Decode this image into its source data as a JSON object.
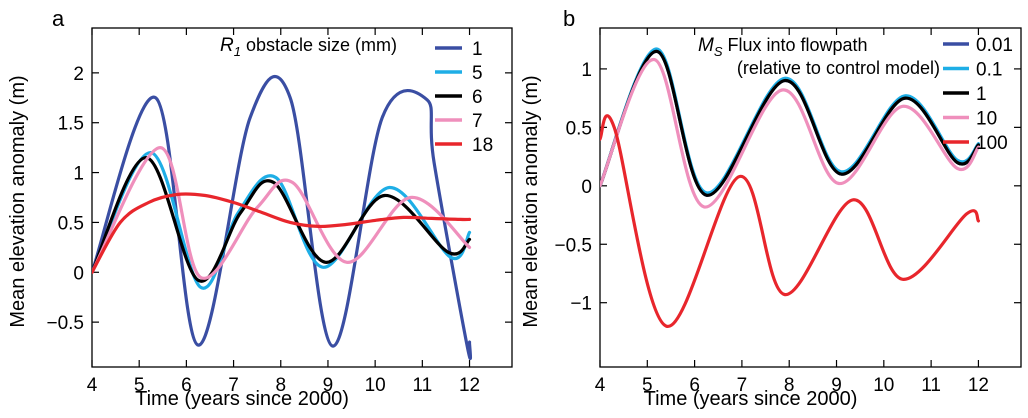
{
  "chart_data": [
    {
      "panel": "a",
      "type": "line",
      "xlabel": "Time (years since 2000)",
      "ylabel": "Mean elevation anomaly (m)",
      "xlim": [
        4,
        12.9
      ],
      "ylim": [
        -0.95,
        2.45
      ],
      "xticks": [
        "4",
        "5",
        "6",
        "7",
        "8",
        "9",
        "10",
        "11",
        "12"
      ],
      "yticks": [
        "−0.5",
        "0",
        "0.5",
        "1",
        "1.5",
        "2"
      ],
      "ytick_values": [
        -0.5,
        0,
        0.5,
        1,
        1.5,
        2
      ],
      "legend_title_symbol": "R",
      "legend_title_subscript": "1",
      "legend_title_rest": " obstacle size (mm)",
      "legend_placement": "top-right",
      "grid": false,
      "series": [
        {
          "name": "1",
          "color": "#3a4ea3",
          "x": [
            4.0,
            5.35,
            6.25,
            7.35,
            8.2,
            9.1,
            10.15,
            11.1,
            11.25,
            11.95,
            12.0
          ],
          "y": [
            0.0,
            1.75,
            -0.73,
            1.55,
            1.75,
            -0.74,
            1.55,
            1.73,
            1.1,
            -0.74,
            -0.7
          ]
        },
        {
          "name": "5",
          "color": "#1eaee6",
          "x": [
            4.0,
            5.25,
            6.3,
            7.1,
            7.9,
            8.9,
            10.3,
            11.6,
            12.0
          ],
          "y": [
            0.0,
            1.2,
            -0.15,
            0.6,
            0.95,
            0.05,
            0.85,
            0.15,
            0.4
          ]
        },
        {
          "name": "6",
          "color": "#000000",
          "x": [
            4.0,
            5.15,
            6.25,
            7.15,
            7.85,
            8.95,
            10.2,
            11.55,
            12.0
          ],
          "y": [
            0.0,
            1.15,
            -0.08,
            0.6,
            0.9,
            0.1,
            0.77,
            0.2,
            0.33
          ]
        },
        {
          "name": "7",
          "color": "#ef8fbc",
          "x": [
            4.0,
            5.45,
            6.3,
            7.5,
            8.25,
            9.4,
            10.75,
            12.0
          ],
          "y": [
            0.0,
            1.25,
            -0.05,
            0.65,
            0.9,
            0.1,
            0.75,
            0.25
          ]
        },
        {
          "name": "18",
          "color": "#e8262c",
          "x": [
            4.0,
            4.6,
            5.2,
            5.8,
            6.4,
            7.0,
            7.6,
            8.2,
            8.8,
            9.4,
            10.0,
            10.6,
            11.2,
            11.8,
            12.0
          ],
          "y": [
            0.0,
            0.5,
            0.7,
            0.78,
            0.77,
            0.7,
            0.6,
            0.5,
            0.46,
            0.48,
            0.52,
            0.55,
            0.54,
            0.53,
            0.53
          ]
        }
      ]
    },
    {
      "panel": "b",
      "type": "line",
      "xlabel": "Time (years since 2000)",
      "ylabel": "Mean elevation anomaly (m)",
      "xlim": [
        4,
        12.9
      ],
      "ylim": [
        -1.55,
        1.35
      ],
      "xticks": [
        "4",
        "5",
        "6",
        "7",
        "8",
        "9",
        "10",
        "11",
        "12"
      ],
      "yticks": [
        "−1",
        "−0.5",
        "0",
        "0.5",
        "1"
      ],
      "ytick_values": [
        -1,
        -0.5,
        0,
        0.5,
        1
      ],
      "legend_title_symbol": "M",
      "legend_title_subscript": "S",
      "legend_title_rest": " Flux into flowpath",
      "legend_title_line2": "(relative to control model)",
      "legend_placement": "top-right",
      "grid": false,
      "series": [
        {
          "name": "0.01",
          "color": "#3a4ea3",
          "x": [
            4.0,
            5.2,
            6.25,
            7.9,
            9.1,
            10.45,
            11.55,
            12.0
          ],
          "y": [
            0.0,
            1.15,
            -0.08,
            0.9,
            0.1,
            0.75,
            0.2,
            0.35
          ]
        },
        {
          "name": "0.1",
          "color": "#1eaee6",
          "x": [
            4.0,
            5.2,
            6.25,
            7.9,
            9.1,
            10.45,
            11.55,
            12.0
          ],
          "y": [
            0.0,
            1.17,
            -0.06,
            0.92,
            0.12,
            0.77,
            0.22,
            0.36
          ]
        },
        {
          "name": "1",
          "color": "#000000",
          "x": [
            4.0,
            5.2,
            6.25,
            7.9,
            9.1,
            10.45,
            11.55,
            12.0
          ],
          "y": [
            0.0,
            1.15,
            -0.08,
            0.9,
            0.1,
            0.75,
            0.2,
            0.35
          ]
        },
        {
          "name": "10",
          "color": "#ef8fbc",
          "x": [
            4.0,
            5.15,
            6.2,
            7.85,
            9.05,
            10.4,
            11.55,
            12.0
          ],
          "y": [
            0.0,
            1.08,
            -0.18,
            0.82,
            0.02,
            0.68,
            0.15,
            0.33
          ]
        },
        {
          "name": "100",
          "color": "#e8262c",
          "x": [
            4.0,
            4.3,
            5.4,
            6.95,
            7.9,
            9.35,
            10.4,
            11.75,
            12.0
          ],
          "y": [
            0.4,
            0.5,
            -1.2,
            0.08,
            -0.93,
            -0.12,
            -0.8,
            -0.24,
            -0.3
          ]
        }
      ]
    }
  ]
}
